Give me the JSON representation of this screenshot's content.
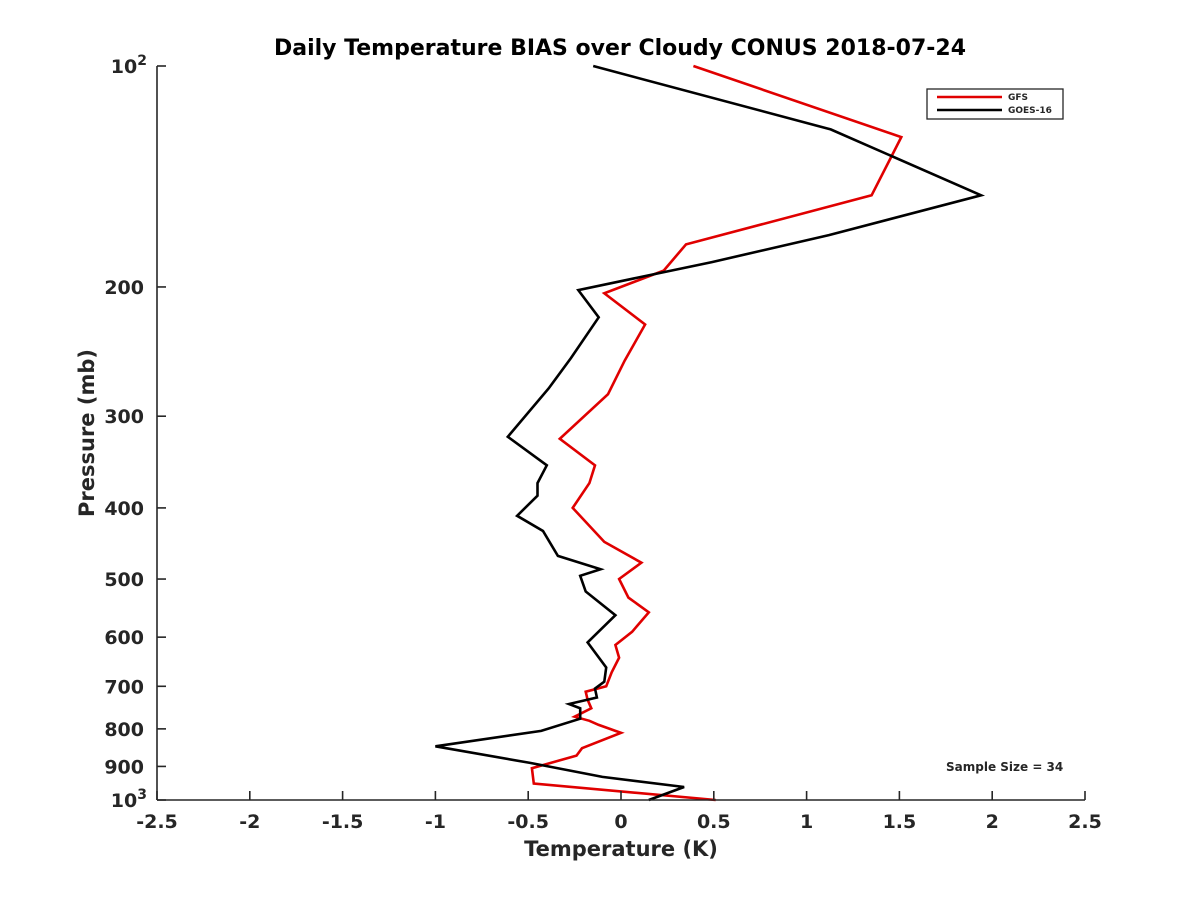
{
  "chart_data": {
    "type": "line",
    "title": "Daily Temperature BIAS over Cloudy CONUS 2018-07-24",
    "xlabel": "Temperature (K)",
    "ylabel": "Pressure (mb)",
    "xlim": [
      -2.5,
      2.5
    ],
    "ylim": [
      100,
      1000
    ],
    "yscale": "log",
    "y_reversed": true,
    "grid": false,
    "legend_position": "top-right",
    "x_ticks": [
      -2.5,
      -2,
      -1.5,
      -1,
      -0.5,
      0,
      0.5,
      1,
      1.5,
      2,
      2.5
    ],
    "x_tick_labels": [
      "-2.5",
      "-2",
      "-1.5",
      "-1",
      "-0.5",
      "0",
      "0.5",
      "1",
      "1.5",
      "2",
      "2.5"
    ],
    "y_ticks": [
      200,
      300,
      400,
      500,
      600,
      700,
      800,
      900
    ],
    "y_tick_labels": [
      "200",
      "300",
      "400",
      "500",
      "600",
      "700",
      "800",
      "900"
    ],
    "y_end_labels": [
      {
        "value": 100,
        "base": "10",
        "exp": "2"
      },
      {
        "value": 1000,
        "base": "10",
        "exp": "3"
      }
    ],
    "annotation": "Sample Size = 34",
    "series": [
      {
        "name": "GFS",
        "color": "#e00000",
        "x": [
          0.39,
          1.51,
          1.35,
          0.35,
          0.23,
          -0.09,
          0.13,
          0.02,
          -0.07,
          -0.33,
          -0.14,
          -0.17,
          -0.26,
          -0.09,
          0.11,
          -0.01,
          0.04,
          0.15,
          0.06,
          -0.03,
          -0.01,
          -0.05,
          -0.08,
          -0.19,
          -0.18,
          -0.16,
          -0.25,
          -0.17,
          -0.12,
          -0.06,
          -0.03,
          0.0,
          -0.21,
          -0.24,
          -0.48,
          -0.47,
          0.51
        ],
        "y": [
          100,
          125,
          150,
          175,
          190,
          204,
          225,
          252,
          280,
          322,
          350,
          370,
          400,
          445,
          475,
          500,
          530,
          555,
          590,
          615,
          640,
          670,
          700,
          712,
          730,
          750,
          770,
          780,
          790,
          800,
          805,
          810,
          850,
          870,
          905,
          950,
          1000
        ]
      },
      {
        "name": "GOES-16",
        "color": "#000000",
        "x": [
          -0.15,
          1.13,
          1.94,
          1.12,
          0.49,
          -0.23,
          -0.12,
          -0.27,
          -0.39,
          -0.61,
          -0.4,
          -0.45,
          -0.45,
          -0.56,
          -0.42,
          -0.34,
          -0.11,
          -0.22,
          -0.19,
          -0.03,
          -0.18,
          -0.08,
          -0.09,
          -0.14,
          -0.13,
          -0.28,
          -0.22,
          -0.22,
          -0.43,
          -1.0,
          -0.49,
          -0.1,
          0.34,
          0.15
        ],
        "y": [
          100,
          122,
          150,
          170,
          185,
          202,
          220,
          250,
          275,
          320,
          350,
          370,
          385,
          410,
          430,
          465,
          485,
          495,
          520,
          560,
          610,
          660,
          690,
          705,
          725,
          740,
          750,
          775,
          805,
          845,
          890,
          930,
          960,
          1000
        ]
      }
    ]
  }
}
